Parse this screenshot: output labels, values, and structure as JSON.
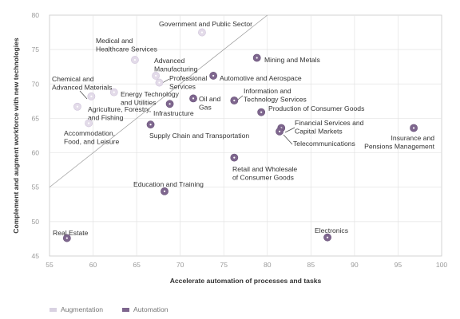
{
  "chart_data": {
    "type": "scatter",
    "title": "",
    "xlabel": "Accelerate automation of processes and tasks",
    "ylabel": "Complement and augment workforce with new technologies",
    "xlim": [
      55,
      100
    ],
    "ylim": [
      45,
      80
    ],
    "xticks": [
      "55",
      "60",
      "65",
      "70",
      "75",
      "80",
      "85",
      "90",
      "95",
      "100"
    ],
    "yticks": [
      "45",
      "50",
      "55",
      "60",
      "65",
      "70",
      "75",
      "80"
    ],
    "grid": true,
    "diagonal": true,
    "legend": [
      {
        "name": "Augmentation",
        "color": "#d9d2e2"
      },
      {
        "name": "Automation",
        "color": "#7e668e"
      }
    ],
    "points": [
      {
        "name": "Government and Public Sector",
        "x": 72.5,
        "y": 77.5,
        "series": "Augmentation"
      },
      {
        "name": "Medical and Healthcare Services",
        "x": 64.8,
        "y": 73.5,
        "series": "Augmentation"
      },
      {
        "name": "Advanced Manufacturing",
        "x": 67.2,
        "y": 71.2,
        "series": "Augmentation"
      },
      {
        "name": "Professional Services",
        "x": 67.6,
        "y": 70.2,
        "series": "Augmentation"
      },
      {
        "name": "Energy Technology and Utilities",
        "x": 62.4,
        "y": 68.8,
        "series": "Augmentation"
      },
      {
        "name": "Chemical and Advanced Materials",
        "x": 59.8,
        "y": 68.2,
        "series": "Augmentation"
      },
      {
        "name": "Agriculture, Forestry, and Fishing",
        "x": 58.2,
        "y": 66.7,
        "series": "Augmentation"
      },
      {
        "name": "Accommodation, Food, and Leisure",
        "x": 59.5,
        "y": 64.3,
        "series": "Augmentation"
      },
      {
        "name": "Mining and Metals",
        "x": 78.8,
        "y": 73.8,
        "series": "Automation"
      },
      {
        "name": "Automotive and Aerospace",
        "x": 73.8,
        "y": 71.2,
        "series": "Automation"
      },
      {
        "name": "Information and Technology Services",
        "x": 76.2,
        "y": 67.6,
        "series": "Automation"
      },
      {
        "name": "Oil and Gas",
        "x": 71.5,
        "y": 67.9,
        "series": "Automation"
      },
      {
        "name": "Infrastructure",
        "x": 68.8,
        "y": 67.1,
        "series": "Automation"
      },
      {
        "name": "Production of Consumer Goods",
        "x": 79.3,
        "y": 65.9,
        "series": "Automation"
      },
      {
        "name": "Supply Chain and Transportation",
        "x": 66.6,
        "y": 64.1,
        "series": "Automation"
      },
      {
        "name": "Financial Services and Capital Markets",
        "x": 81.6,
        "y": 63.6,
        "series": "Automation"
      },
      {
        "name": "Telecommunications",
        "x": 81.4,
        "y": 63.1,
        "series": "Automation"
      },
      {
        "name": "Insurance and Pensions Management",
        "x": 96.8,
        "y": 63.6,
        "series": "Automation"
      },
      {
        "name": "Retail and Wholesale of Consumer Goods",
        "x": 76.2,
        "y": 59.3,
        "series": "Automation"
      },
      {
        "name": "Education and Training",
        "x": 68.2,
        "y": 54.4,
        "series": "Automation"
      },
      {
        "name": "Real Estate",
        "x": 57.0,
        "y": 47.6,
        "series": "Automation"
      },
      {
        "name": "Electronics",
        "x": 86.9,
        "y": 47.7,
        "series": "Automation"
      }
    ]
  }
}
